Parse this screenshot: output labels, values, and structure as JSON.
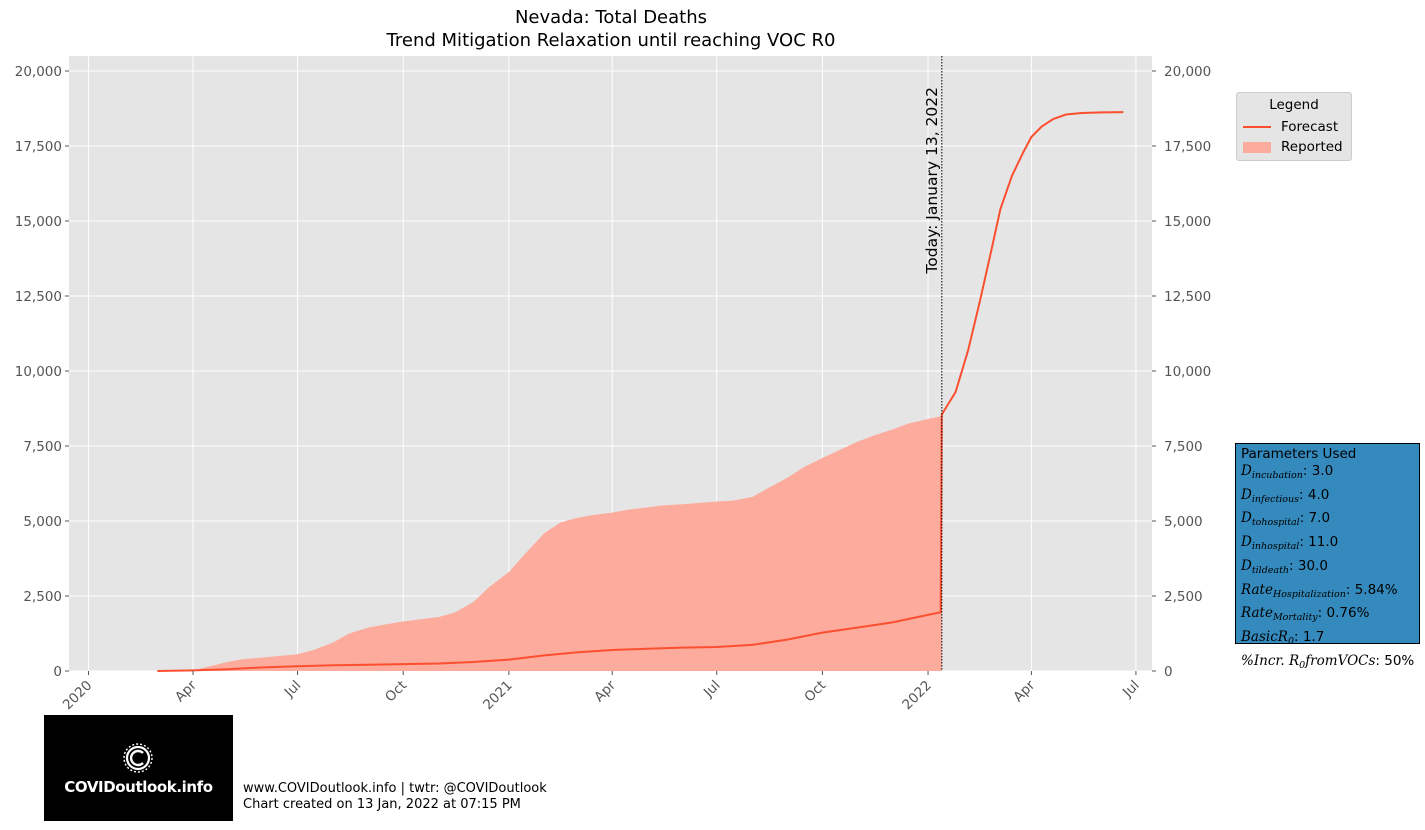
{
  "chart_data": {
    "type": "area",
    "title": "Nevada: Total Deaths",
    "subtitle": "Trend Mitigation Relaxation until reaching VOC R0",
    "xlabel": "",
    "ylabel": "",
    "ylim": [
      0,
      20500
    ],
    "xlim": [
      "2019-12-15",
      "2022-07-15"
    ],
    "grid": true,
    "y_ticks": [
      "0",
      "2,500",
      "5,000",
      "7,500",
      "10,000",
      "12,500",
      "15,000",
      "17,500",
      "20,000"
    ],
    "x_ticks": [
      "2020",
      "Apr",
      "Jul",
      "Oct",
      "2021",
      "Apr",
      "Jul",
      "Oct",
      "2022",
      "Apr",
      "Jul"
    ],
    "legend": {
      "title": "Legend",
      "placement": "right",
      "entries": [
        "Forecast",
        "Reported"
      ]
    },
    "today_label": "Today: January 13, 2022",
    "today_date": "2022-01-13",
    "series": [
      {
        "name": "Reported",
        "kind": "bar-area",
        "color": "#fcab9c",
        "x": [
          "2020-03-01",
          "2020-03-15",
          "2020-04-01",
          "2020-04-15",
          "2020-05-01",
          "2020-05-15",
          "2020-06-01",
          "2020-06-15",
          "2020-07-01",
          "2020-07-15",
          "2020-08-01",
          "2020-08-15",
          "2020-09-01",
          "2020-09-15",
          "2020-10-01",
          "2020-10-15",
          "2020-11-01",
          "2020-11-15",
          "2020-12-01",
          "2020-12-15",
          "2021-01-01",
          "2021-01-15",
          "2021-02-01",
          "2021-02-15",
          "2021-03-01",
          "2021-03-15",
          "2021-04-01",
          "2021-04-15",
          "2021-05-01",
          "2021-05-15",
          "2021-06-01",
          "2021-06-15",
          "2021-07-01",
          "2021-07-15",
          "2021-08-01",
          "2021-08-15",
          "2021-09-01",
          "2021-09-15",
          "2021-10-01",
          "2021-10-15",
          "2021-11-01",
          "2021-11-15",
          "2021-12-01",
          "2021-12-15",
          "2022-01-01",
          "2022-01-13"
        ],
        "y": [
          0,
          0,
          20,
          150,
          300,
          400,
          450,
          500,
          560,
          700,
          950,
          1250,
          1450,
          1550,
          1650,
          1720,
          1800,
          1950,
          2300,
          2800,
          3300,
          3900,
          4600,
          4950,
          5100,
          5200,
          5280,
          5380,
          5450,
          5520,
          5560,
          5600,
          5650,
          5680,
          5800,
          6100,
          6450,
          6800,
          7100,
          7350,
          7650,
          7850,
          8050,
          8250,
          8400,
          8500
        ]
      },
      {
        "name": "Forecast",
        "kind": "line",
        "color": "#fc4f30",
        "x": [
          "2020-03-01",
          "2020-04-01",
          "2020-05-01",
          "2020-06-01",
          "2020-07-01",
          "2020-08-01",
          "2020-09-01",
          "2020-10-01",
          "2020-11-01",
          "2020-12-01",
          "2021-01-01",
          "2021-02-01",
          "2021-03-01",
          "2021-04-01",
          "2021-05-01",
          "2021-06-01",
          "2021-07-01",
          "2021-08-01",
          "2021-09-01",
          "2021-10-01",
          "2021-11-01",
          "2021-12-01",
          "2022-01-12",
          "2022-01-13",
          "2022-01-25",
          "2022-02-05",
          "2022-02-15",
          "2022-02-25",
          "2022-03-05",
          "2022-03-15",
          "2022-03-25",
          "2022-04-01",
          "2022-04-10",
          "2022-04-20",
          "2022-05-01",
          "2022-05-15",
          "2022-06-01",
          "2022-06-20"
        ],
        "y": [
          0,
          20,
          60,
          120,
          160,
          190,
          210,
          230,
          250,
          300,
          380,
          520,
          620,
          700,
          740,
          780,
          800,
          870,
          1050,
          1280,
          1450,
          1620,
          1960,
          8550,
          9300,
          10700,
          12300,
          14000,
          15400,
          16500,
          17300,
          17800,
          18150,
          18400,
          18550,
          18600,
          18620,
          18630
        ]
      }
    ]
  },
  "legend": {
    "title": "Legend",
    "forecast": "Forecast",
    "reported": "Reported"
  },
  "parameters": {
    "title": "Parameters Used",
    "rows": [
      {
        "sym": "D",
        "sub": "incubation",
        "value": ": 3.0"
      },
      {
        "sym": "D",
        "sub": "infectious",
        "value": ": 4.0"
      },
      {
        "sym": "D",
        "sub": "tohospital",
        "value": ": 7.0"
      },
      {
        "sym": "D",
        "sub": "inhospital",
        "value": ": 11.0"
      },
      {
        "sym": "D",
        "sub": "tildeath",
        "value": ": 30.0"
      },
      {
        "sym": "Rate",
        "sub": "Hospitalization",
        "value": ": 5.84%"
      },
      {
        "sym": "Rate",
        "sub": "Mortality",
        "value": ": 0.76%"
      },
      {
        "sym": "BasicR",
        "sub": "0",
        "value": ": 1.7"
      },
      {
        "sym": "%Incr. R",
        "sub": "0",
        "tail": "fromVOCs",
        "value": ": 50%"
      }
    ]
  },
  "logo_text": "COVIDoutlook.info",
  "footer": {
    "line1": "www.COVIDoutlook.info | twtr: @COVIDoutlook",
    "line2": "Chart created on 13 Jan, 2022 at 07:15 PM"
  }
}
